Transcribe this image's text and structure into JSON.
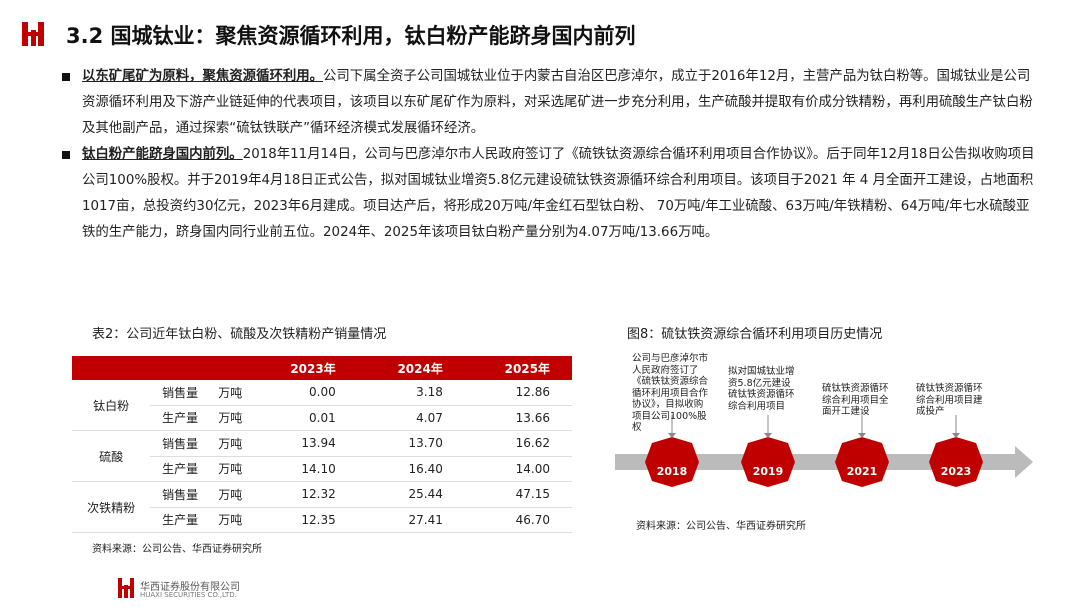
{
  "header": {
    "title": "3.2 国城钛业：聚焦资源循环利用，钛白粉产能跻身国内前列"
  },
  "bullets": [
    {
      "lead": "以东矿尾矿为原料，聚焦资源循环利用。",
      "text": "公司下属全资子公司国城钛业位于内蒙古自治区巴彦淖尔，成立于2016年12月，主营产品为钛白粉等。国城钛业是公司资源循环利用及下游产业链延伸的代表项目，该项目以东矿尾矿作为原料，对采选尾矿进一步充分利用，生产硫酸并提取有价成分铁精粉，再利用硫酸生产钛白粉及其他副产品，通过探索“硫钛铁联产”循环经济模式发展循环经济。"
    },
    {
      "lead": "钛白粉产能跻身国内前列。",
      "text": "2018年11月14日，公司与巴彦淖尔市人民政府签订了《硫铁钛资源综合循环利用项目合作协议》。后于同年12月18日公告拟收购项目公司100%股权。并于2019年4月18日正式公告，拟对国城钛业增资5.8亿元建设硫钛铁资源循环综合利用项目。该项目于2021 年 4 月全面开工建设，占地面积1017亩，总投资约30亿元，2023年6月建成。项目达产后，将形成20万吨/年金红石型钛白粉、 70万吨/年工业硫酸、63万吨/年铁精粉、64万吨/年七水硫酸亚铁的生产能力，跻身国内同行业前五位。2024年、2025年该项目钛白粉产量分别为4.07万吨/13.66万吨。"
    }
  ],
  "table": {
    "title": "表2：公司近年钛白粉、硫酸及次铁精粉产销量情况",
    "years": [
      "2023年",
      "2024年",
      "2025年"
    ],
    "groups": [
      {
        "name": "钛白粉",
        "rows": [
          {
            "item": "销售量",
            "unit": "万吨",
            "values": [
              "0.00",
              "3.18",
              "12.86"
            ]
          },
          {
            "item": "生产量",
            "unit": "万吨",
            "values": [
              "0.01",
              "4.07",
              "13.66"
            ]
          }
        ]
      },
      {
        "name": "硫酸",
        "rows": [
          {
            "item": "销售量",
            "unit": "万吨",
            "values": [
              "13.94",
              "13.70",
              "16.62"
            ]
          },
          {
            "item": "生产量",
            "unit": "万吨",
            "values": [
              "14.10",
              "16.40",
              "14.00"
            ]
          }
        ]
      },
      {
        "name": "次铁精粉",
        "rows": [
          {
            "item": "销售量",
            "unit": "万吨",
            "values": [
              "12.32",
              "25.44",
              "47.15"
            ]
          },
          {
            "item": "生产量",
            "unit": "万吨",
            "values": [
              "12.35",
              "27.41",
              "46.70"
            ]
          }
        ]
      }
    ],
    "source": "资料来源：公司公告、华西证券研究所"
  },
  "figure": {
    "title": "图8：硫钛铁资源综合循环利用项目历史情况",
    "events": [
      {
        "year": "2018",
        "text": "公司与巴彦淖尔市人民政府签订了《硫铁钛资源综合循环利用项目合作协议》，目拟收购项目公司100%股权"
      },
      {
        "year": "2019",
        "text": "拟对国城钛业增资5.8亿元建设硫钛铁资源循环综合利用项目"
      },
      {
        "year": "2021",
        "text": "硫钛铁资源循环综合利用项目全面开工建设"
      },
      {
        "year": "2023",
        "text": "硫钛铁资源循环综合利用项目建成投产"
      }
    ],
    "source": "资料来源：公司公告、华西证券研究所"
  },
  "footer": {
    "company": "华西证券股份有限公司",
    "company_en": "HUAXI SECURITIES CO.,LTD."
  }
}
